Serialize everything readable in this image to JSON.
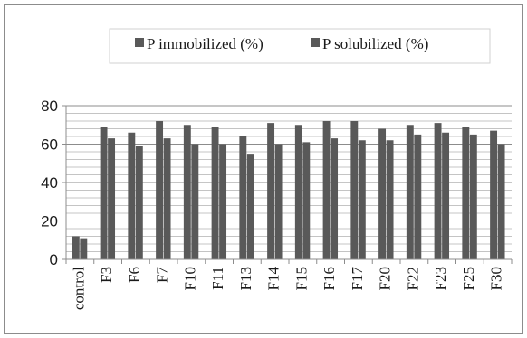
{
  "chart_data": {
    "type": "bar",
    "categories": [
      "control",
      "F3",
      "F6",
      "F7",
      "F10",
      "F11",
      "F13",
      "F14",
      "F15",
      "F16",
      "F17",
      "F20",
      "F22",
      "F23",
      "F25",
      "F30"
    ],
    "series": [
      {
        "name": "P immobilized (%)",
        "values": [
          12,
          69,
          66,
          72,
          70,
          69,
          64,
          71,
          70,
          72,
          72,
          68,
          70,
          71,
          69,
          67
        ],
        "color": "#595959"
      },
      {
        "name": "P solubilized (%)",
        "values": [
          11,
          63,
          59,
          63,
          60,
          60,
          55,
          60,
          61,
          63,
          62,
          62,
          65,
          66,
          65,
          60
        ],
        "color": "#595959"
      }
    ],
    "title": "",
    "xlabel": "",
    "ylabel": "",
    "ylim": [
      0,
      80
    ],
    "yticks": [
      0,
      20,
      40,
      60,
      80
    ],
    "grid": true,
    "legend_position": "top-right"
  }
}
